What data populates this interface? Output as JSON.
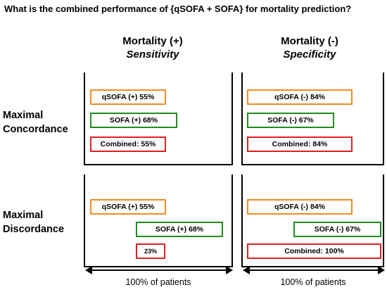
{
  "question": "What is the combined performance of {qSOFA + SOFA} for mortality prediction?",
  "columns": [
    {
      "title": "Mortality (+)",
      "subtitle": "Sensitivity"
    },
    {
      "title": "Mortality (-)",
      "subtitle": "Specificity"
    }
  ],
  "rows": [
    {
      "label_line1": "Maximal",
      "label_line2": "Concordance"
    },
    {
      "label_line1": "Maximal",
      "label_line2": "Discordance"
    }
  ],
  "bars": {
    "concordance_sensitivity": {
      "qsofa": {
        "label": "qSOFA (+) 55%",
        "value": 55,
        "color": "#f08a24"
      },
      "sofa": {
        "label": "SOFA (+) 68%",
        "value": 68,
        "color": "#1e8f1e"
      },
      "combined": {
        "label": "Combined: 55%",
        "value": 55,
        "color": "#e02020"
      }
    },
    "concordance_specificity": {
      "qsofa": {
        "label": "qSOFA (-) 84%",
        "value": 84,
        "color": "#f08a24"
      },
      "sofa": {
        "label": "SOFA (-) 67%",
        "value": 67,
        "color": "#1e8f1e"
      },
      "combined": {
        "label": "Combined: 84%",
        "value": 84,
        "color": "#e02020"
      }
    },
    "discordance_sensitivity": {
      "qsofa": {
        "label": "qSOFA (+) 55%",
        "value": 55,
        "color": "#f08a24"
      },
      "sofa": {
        "label": "SOFA (+) 68%",
        "value": 68,
        "color": "#1e8f1e"
      },
      "combined": {
        "label": "23%",
        "value": 23,
        "color": "#e02020"
      }
    },
    "discordance_specificity": {
      "qsofa": {
        "label": "qSOFA (-) 84%",
        "value": 84,
        "color": "#f08a24"
      },
      "sofa": {
        "label": "SOFA (-) 67%",
        "value": 67,
        "color": "#1e8f1e"
      },
      "combined": {
        "label": "Combined: 100%",
        "value": 100,
        "color": "#e02020"
      }
    }
  },
  "axis_label": "100% of patients"
}
